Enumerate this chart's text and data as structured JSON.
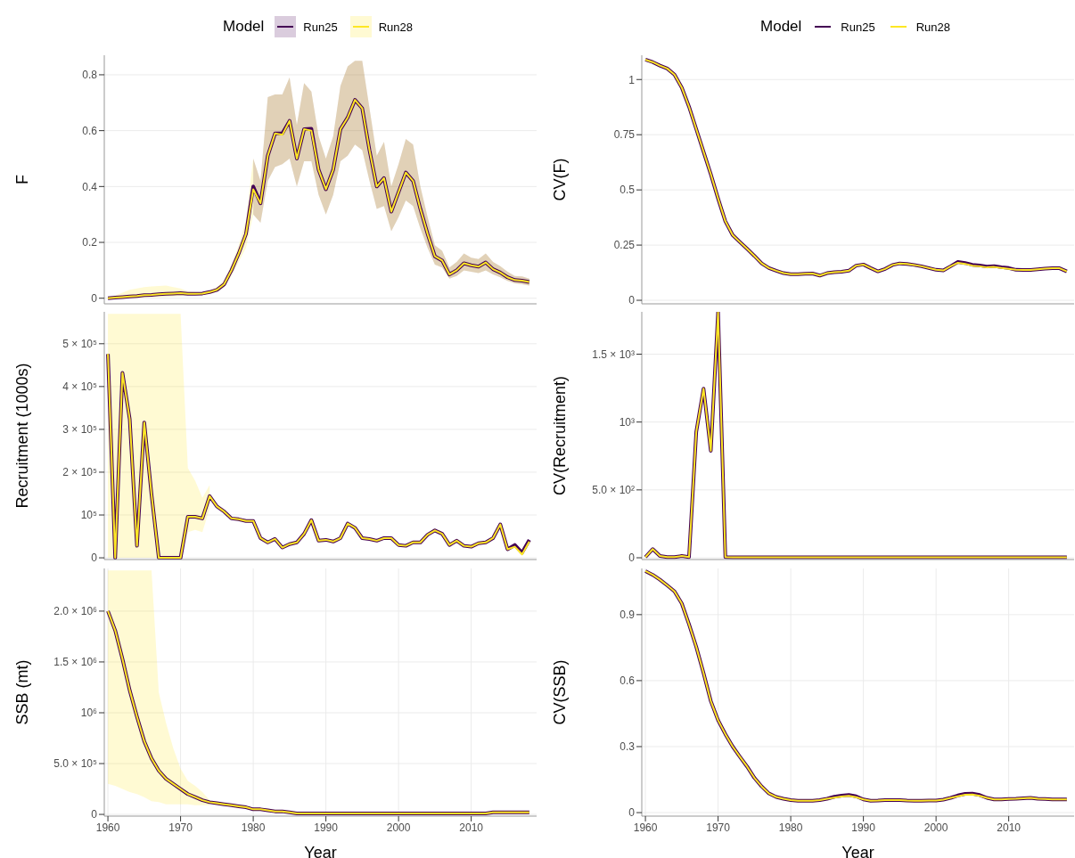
{
  "chart_data": [
    {
      "type": "line",
      "ylabel": "F",
      "legend": "top",
      "legend_title": "Model",
      "tick_labels": "y",
      "grid": true,
      "xlim": [
        1959.5,
        2019
      ],
      "xticks": [
        1960,
        1970,
        1980,
        1990,
        2000,
        2010
      ],
      "ylim": [
        -0.02,
        0.87
      ],
      "yticks": [
        0,
        0.2,
        0.4,
        0.6,
        0.8
      ],
      "x": [
        1960,
        1961,
        1962,
        1963,
        1964,
        1965,
        1966,
        1967,
        1968,
        1969,
        1970,
        1971,
        1972,
        1973,
        1974,
        1975,
        1976,
        1977,
        1978,
        1979,
        1980,
        1981,
        1982,
        1983,
        1984,
        1985,
        1986,
        1987,
        1988,
        1989,
        1990,
        1991,
        1992,
        1993,
        1994,
        1995,
        1996,
        1997,
        1998,
        1999,
        2000,
        2001,
        2002,
        2003,
        2004,
        2005,
        2006,
        2007,
        2008,
        2009,
        2010,
        2011,
        2012,
        2013,
        2014,
        2015,
        2016,
        2017,
        2018
      ],
      "series": [
        {
          "name": "Run25",
          "color": "#440154",
          "values": [
            0,
            0.002,
            0.004,
            0.006,
            0.008,
            0.011,
            0.012,
            0.014,
            0.016,
            0.017,
            0.018,
            0.016,
            0.016,
            0.017,
            0.022,
            0.03,
            0.05,
            0.1,
            0.16,
            0.23,
            0.4,
            0.34,
            0.51,
            0.59,
            0.59,
            0.635,
            0.5,
            0.605,
            0.607,
            0.46,
            0.39,
            0.46,
            0.605,
            0.647,
            0.71,
            0.68,
            0.53,
            0.4,
            0.43,
            0.31,
            0.38,
            0.45,
            0.42,
            0.32,
            0.23,
            0.15,
            0.135,
            0.085,
            0.1,
            0.125,
            0.118,
            0.113,
            0.128,
            0.104,
            0.092,
            0.075,
            0.065,
            0.063,
            0.058
          ],
          "lower": [
            null,
            null,
            null,
            null,
            null,
            null,
            null,
            null,
            null,
            null,
            null,
            null,
            null,
            null,
            null,
            null,
            null,
            null,
            null,
            null,
            0.3,
            0.27,
            0.42,
            0.47,
            0.48,
            0.5,
            0.4,
            0.49,
            0.49,
            0.37,
            0.3,
            0.37,
            0.49,
            0.51,
            0.55,
            0.53,
            0.42,
            0.32,
            0.33,
            0.24,
            0.29,
            0.35,
            0.33,
            0.25,
            0.18,
            0.12,
            0.11,
            0.07,
            0.08,
            0.1,
            0.095,
            0.09,
            0.1,
            0.085,
            0.075,
            0.062,
            0.053,
            0.05,
            0.045
          ],
          "upper": [
            null,
            null,
            null,
            null,
            null,
            null,
            null,
            null,
            null,
            null,
            null,
            null,
            null,
            null,
            null,
            null,
            null,
            null,
            null,
            null,
            0.5,
            0.42,
            0.72,
            0.73,
            0.73,
            0.79,
            0.62,
            0.77,
            0.74,
            0.58,
            0.5,
            0.58,
            0.76,
            0.83,
            0.85,
            0.85,
            0.68,
            0.51,
            0.56,
            0.4,
            0.48,
            0.57,
            0.55,
            0.4,
            0.29,
            0.19,
            0.17,
            0.11,
            0.13,
            0.16,
            0.145,
            0.14,
            0.16,
            0.13,
            0.115,
            0.095,
            0.08,
            0.078,
            0.07
          ]
        },
        {
          "name": "Run28",
          "color": "#fde725",
          "values": [
            0,
            0.002,
            0.004,
            0.006,
            0.008,
            0.011,
            0.012,
            0.014,
            0.016,
            0.017,
            0.018,
            0.016,
            0.016,
            0.017,
            0.022,
            0.03,
            0.05,
            0.1,
            0.16,
            0.23,
            0.39,
            0.34,
            0.51,
            0.59,
            0.585,
            0.635,
            0.5,
            0.605,
            0.6,
            0.46,
            0.39,
            0.46,
            0.605,
            0.647,
            0.71,
            0.68,
            0.53,
            0.4,
            0.43,
            0.31,
            0.38,
            0.45,
            0.42,
            0.32,
            0.23,
            0.15,
            0.135,
            0.085,
            0.1,
            0.125,
            0.118,
            0.113,
            0.128,
            0.104,
            0.092,
            0.075,
            0.065,
            0.063,
            0.058
          ],
          "lower": [
            0,
            0,
            0,
            0,
            0.001,
            0.002,
            0.003,
            0.004,
            0.005,
            0.006,
            0.008,
            0.01,
            0.011,
            0.012,
            0.016,
            0.022,
            0.038,
            0.08,
            0.13,
            0.18,
            0.3,
            0.27,
            0.42,
            0.47,
            0.48,
            0.5,
            0.4,
            0.49,
            0.49,
            0.37,
            0.3,
            0.37,
            0.49,
            0.51,
            0.55,
            0.53,
            0.42,
            0.32,
            0.33,
            0.24,
            0.29,
            0.35,
            0.33,
            0.25,
            0.18,
            0.12,
            0.11,
            0.07,
            0.08,
            0.1,
            0.095,
            0.09,
            0.1,
            0.085,
            0.075,
            0.062,
            0.053,
            0.05,
            0.045
          ],
          "upper": [
            0.005,
            0.01,
            0.02,
            0.03,
            0.035,
            0.04,
            0.042,
            0.044,
            0.045,
            0.04,
            0.035,
            0.025,
            0.022,
            0.022,
            0.028,
            0.04,
            0.065,
            0.12,
            0.19,
            0.28,
            0.5,
            0.42,
            0.72,
            0.73,
            0.73,
            0.79,
            0.62,
            0.77,
            0.74,
            0.58,
            0.5,
            0.58,
            0.76,
            0.83,
            0.85,
            0.85,
            0.68,
            0.51,
            0.56,
            0.4,
            0.48,
            0.57,
            0.55,
            0.4,
            0.29,
            0.19,
            0.17,
            0.11,
            0.13,
            0.16,
            0.145,
            0.14,
            0.16,
            0.13,
            0.115,
            0.095,
            0.08,
            0.078,
            0.07
          ]
        }
      ]
    },
    {
      "type": "line",
      "ylabel": "CV(F)",
      "legend": "top",
      "legend_title": "Model",
      "tick_labels": "y",
      "grid": true,
      "xlim": [
        1959.5,
        2019
      ],
      "xticks": [
        1960,
        1970,
        1980,
        1990,
        2000,
        2010
      ],
      "ylim": [
        -0.016,
        1.11
      ],
      "yticks": [
        0,
        0.25,
        0.5,
        0.75,
        1
      ],
      "x": [
        1960,
        1961,
        1962,
        1963,
        1964,
        1965,
        1966,
        1967,
        1968,
        1969,
        1970,
        1971,
        1972,
        1973,
        1974,
        1975,
        1976,
        1977,
        1978,
        1979,
        1980,
        1981,
        1982,
        1983,
        1984,
        1985,
        1986,
        1987,
        1988,
        1989,
        1990,
        1991,
        1992,
        1993,
        1994,
        1995,
        1996,
        1997,
        1998,
        1999,
        2000,
        2001,
        2002,
        2003,
        2004,
        2005,
        2006,
        2007,
        2008,
        2009,
        2010,
        2011,
        2012,
        2013,
        2014,
        2015,
        2016,
        2017,
        2018
      ],
      "series": [
        {
          "name": "Run25",
          "color": "#440154",
          "values": [
            1.09,
            1.079,
            1.063,
            1.05,
            1.022,
            0.964,
            0.877,
            0.775,
            0.673,
            0.571,
            0.461,
            0.358,
            0.296,
            0.264,
            0.233,
            0.201,
            0.167,
            0.146,
            0.134,
            0.123,
            0.118,
            0.118,
            0.12,
            0.121,
            0.112,
            0.123,
            0.127,
            0.129,
            0.134,
            0.157,
            0.162,
            0.146,
            0.131,
            0.142,
            0.16,
            0.167,
            0.165,
            0.16,
            0.154,
            0.146,
            0.138,
            0.135,
            0.154,
            0.174,
            0.169,
            0.161,
            0.158,
            0.153,
            0.155,
            0.15,
            0.146,
            0.138,
            0.137,
            0.137,
            0.14,
            0.143,
            0.145,
            0.145,
            0.131
          ]
        },
        {
          "name": "Run28",
          "color": "#fde725",
          "values": [
            1.09,
            1.079,
            1.063,
            1.05,
            1.022,
            0.964,
            0.877,
            0.775,
            0.673,
            0.571,
            0.461,
            0.358,
            0.296,
            0.264,
            0.233,
            0.201,
            0.167,
            0.146,
            0.134,
            0.123,
            0.118,
            0.118,
            0.12,
            0.121,
            0.112,
            0.123,
            0.127,
            0.129,
            0.134,
            0.157,
            0.162,
            0.146,
            0.131,
            0.142,
            0.16,
            0.167,
            0.165,
            0.16,
            0.154,
            0.146,
            0.138,
            0.135,
            0.154,
            0.17,
            0.165,
            0.157,
            0.154,
            0.149,
            0.151,
            0.146,
            0.142,
            0.138,
            0.137,
            0.137,
            0.14,
            0.143,
            0.145,
            0.145,
            0.131
          ]
        }
      ]
    },
    {
      "type": "line",
      "ylabel": "Recruitment (1000s)",
      "tick_labels": "y",
      "grid": true,
      "xlim": [
        1959.5,
        2019
      ],
      "xticks": [
        1960,
        1970,
        1980,
        1990,
        2000,
        2010
      ],
      "ylim": [
        -4000,
        574500
      ],
      "yticks": [
        0,
        {
          "value": 100000,
          "label": "10⁵"
        },
        {
          "value": 200000,
          "label": "2 × 10⁵"
        },
        {
          "value": 300000,
          "label": "3 × 10⁵"
        },
        {
          "value": 400000,
          "label": "4 × 10⁵"
        },
        {
          "value": 500000,
          "label": "5 × 10⁵"
        }
      ],
      "x": [
        1960,
        1961,
        1962,
        1963,
        1964,
        1965,
        1966,
        1967,
        1968,
        1969,
        1970,
        1971,
        1972,
        1973,
        1974,
        1975,
        1976,
        1977,
        1978,
        1979,
        1980,
        1981,
        1982,
        1983,
        1984,
        1985,
        1986,
        1987,
        1988,
        1989,
        1990,
        1991,
        1992,
        1993,
        1994,
        1995,
        1996,
        1997,
        1998,
        1999,
        2000,
        2001,
        2002,
        2003,
        2004,
        2005,
        2006,
        2007,
        2008,
        2009,
        2010,
        2011,
        2012,
        2013,
        2014,
        2015,
        2016,
        2017,
        2018
      ],
      "series": [
        {
          "color": "#440154",
          "values": [
            476000,
            0,
            432000,
            324000,
            28000,
            316000,
            148000,
            0,
            0,
            0,
            0,
            96000,
            96000,
            92000,
            144000,
            120000,
            108000,
            92000,
            90000,
            86000,
            86000,
            46000,
            36000,
            44000,
            24000,
            32000,
            36000,
            56000,
            88000,
            40000,
            42000,
            38000,
            46000,
            80000,
            70000,
            46000,
            44000,
            40000,
            46000,
            46000,
            30000,
            28000,
            36000,
            36000,
            54000,
            64000,
            56000,
            30000,
            40000,
            28000,
            26000,
            34000,
            36000,
            46000,
            78000,
            20000,
            30000,
            12000,
            42000
          ]
        },
        {
          "color": "#fde725",
          "values": [
            476000,
            0,
            432000,
            324000,
            28000,
            316000,
            148000,
            0,
            0,
            0,
            0,
            96000,
            96000,
            92000,
            144000,
            120000,
            108000,
            92000,
            90000,
            86000,
            86000,
            46000,
            36000,
            44000,
            24000,
            32000,
            36000,
            56000,
            88000,
            40000,
            42000,
            38000,
            46000,
            80000,
            70000,
            46000,
            44000,
            40000,
            46000,
            46000,
            30000,
            28000,
            36000,
            36000,
            54000,
            64000,
            56000,
            30000,
            40000,
            28000,
            26000,
            34000,
            36000,
            46000,
            78000,
            20000,
            26000,
            8000,
            38000
          ],
          "lower": [
            0,
            0,
            0,
            0,
            0,
            0,
            0,
            0,
            0,
            0,
            0,
            60000,
            65000,
            60000,
            115000,
            null,
            null,
            null,
            null,
            null,
            null,
            null,
            null,
            null,
            null,
            null,
            null,
            null,
            null,
            null,
            null,
            null,
            null,
            null,
            null,
            null,
            null,
            null,
            null,
            null,
            null,
            null,
            null,
            null,
            null,
            null,
            null,
            null,
            null,
            null,
            null,
            null,
            null,
            null,
            null,
            null,
            null,
            null,
            null
          ],
          "upper": [
            570000,
            570000,
            570000,
            570000,
            570000,
            570000,
            570000,
            570000,
            570000,
            570000,
            570000,
            210000,
            180000,
            140000,
            170000,
            null,
            null,
            null,
            null,
            null,
            null,
            null,
            null,
            null,
            null,
            null,
            null,
            null,
            null,
            null,
            null,
            null,
            null,
            null,
            null,
            null,
            null,
            null,
            null,
            null,
            null,
            null,
            null,
            null,
            null,
            null,
            null,
            null,
            null,
            null,
            null,
            null,
            null,
            null,
            null,
            null,
            null,
            null,
            null
          ]
        }
      ]
    },
    {
      "type": "line",
      "ylabel": "CV(Recruitment)",
      "tick_labels": "y",
      "grid": true,
      "xlim": [
        1959.5,
        2019
      ],
      "xticks": [
        1960,
        1970,
        1980,
        1990,
        2000,
        2010
      ],
      "ylim": [
        -13,
        1812
      ],
      "yticks": [
        0,
        {
          "value": 500,
          "label": "5.0 × 10²"
        },
        {
          "value": 1000,
          "label": "10³"
        },
        {
          "value": 1500,
          "label": "1.5 × 10³"
        }
      ],
      "x": [
        1960,
        1961,
        1962,
        1963,
        1964,
        1965,
        1966,
        1967,
        1968,
        1969,
        1970,
        1971,
        1972,
        1973,
        1974,
        1975,
        1976,
        1977,
        1978,
        1979,
        1980,
        1981,
        1982,
        1983,
        1984,
        1985,
        1986,
        1987,
        1988,
        1989,
        1990,
        1991,
        1992,
        1993,
        1994,
        1995,
        1996,
        1997,
        1998,
        1999,
        2000,
        2001,
        2002,
        2003,
        2004,
        2005,
        2006,
        2007,
        2008,
        2009,
        2010,
        2011,
        2012,
        2013,
        2014,
        2015,
        2016,
        2017,
        2018
      ],
      "series": [
        {
          "color": "#440154",
          "values": [
            5,
            64,
            13,
            5,
            5,
            13,
            5,
            928,
            1246,
            788,
            1810,
            5,
            3,
            3,
            3,
            3,
            3,
            3,
            3,
            3,
            3,
            3,
            3,
            3,
            3,
            3,
            3,
            3,
            3,
            3,
            3,
            3,
            3,
            3,
            3,
            3,
            3,
            3,
            3,
            3,
            3,
            3,
            3,
            3,
            3,
            3,
            3,
            3,
            3,
            3,
            3,
            3,
            3,
            3,
            3,
            3,
            3,
            3,
            3
          ]
        },
        {
          "color": "#fde725",
          "values": [
            5,
            64,
            13,
            5,
            5,
            13,
            5,
            928,
            1246,
            788,
            1810,
            5,
            3,
            3,
            3,
            3,
            3,
            3,
            3,
            3,
            3,
            3,
            3,
            3,
            3,
            3,
            3,
            3,
            3,
            3,
            3,
            3,
            3,
            3,
            3,
            3,
            3,
            3,
            3,
            3,
            3,
            3,
            3,
            3,
            3,
            3,
            3,
            3,
            3,
            3,
            3,
            3,
            3,
            3,
            3,
            3,
            3,
            3,
            3
          ]
        }
      ]
    },
    {
      "type": "line",
      "ylabel": "SSB (mt)",
      "xlabel": "Year",
      "grid": true,
      "xlim": [
        1959.5,
        2019
      ],
      "xticks": [
        1960,
        1970,
        1980,
        1990,
        2000,
        2010
      ],
      "ylim": [
        -17000,
        2420000
      ],
      "yticks": [
        0,
        {
          "value": 500000,
          "label": "5.0 × 10⁵"
        },
        {
          "value": 1000000,
          "label": "10⁶"
        },
        {
          "value": 1500000,
          "label": "1.5 × 10⁶"
        },
        {
          "value": 2000000,
          "label": "2.0 × 10⁶"
        }
      ],
      "x": [
        1960,
        1961,
        1962,
        1963,
        1964,
        1965,
        1966,
        1967,
        1968,
        1969,
        1970,
        1971,
        1972,
        1973,
        1974,
        1975,
        1976,
        1977,
        1978,
        1979,
        1980,
        1981,
        1982,
        1983,
        1984,
        1985,
        1986,
        1987,
        1988,
        1989,
        1990,
        1991,
        1992,
        1993,
        1994,
        1995,
        1996,
        1997,
        1998,
        1999,
        2000,
        2001,
        2002,
        2003,
        2004,
        2005,
        2006,
        2007,
        2008,
        2009,
        2010,
        2011,
        2012,
        2013,
        2014,
        2015,
        2016,
        2017,
        2018
      ],
      "series": [
        {
          "color": "#440154",
          "values": [
            2000000,
            1810000,
            1530000,
            1220000,
            960000,
            720000,
            550000,
            430000,
            350000,
            300000,
            250000,
            200000,
            170000,
            140000,
            120000,
            110000,
            100000,
            90000,
            80000,
            70000,
            50000,
            50000,
            40000,
            30000,
            30000,
            20000,
            10000,
            10000,
            10000,
            10000,
            10000,
            10000,
            10000,
            10000,
            10000,
            10000,
            10000,
            10000,
            10000,
            10000,
            10000,
            10000,
            10000,
            10000,
            10000,
            10000,
            10000,
            10000,
            10000,
            10000,
            10000,
            10000,
            10000,
            20000,
            20000,
            20000,
            20000,
            20000,
            20000
          ]
        },
        {
          "color": "#fde725",
          "values": [
            2000000,
            1810000,
            1530000,
            1220000,
            960000,
            720000,
            550000,
            430000,
            350000,
            300000,
            250000,
            200000,
            170000,
            140000,
            120000,
            110000,
            100000,
            90000,
            80000,
            70000,
            50000,
            50000,
            40000,
            30000,
            30000,
            20000,
            10000,
            10000,
            10000,
            10000,
            10000,
            10000,
            10000,
            10000,
            10000,
            10000,
            10000,
            10000,
            10000,
            10000,
            10000,
            10000,
            10000,
            10000,
            10000,
            10000,
            10000,
            10000,
            10000,
            10000,
            10000,
            10000,
            10000,
            20000,
            20000,
            20000,
            20000,
            20000,
            20000
          ],
          "lower": [
            300000,
            280000,
            250000,
            220000,
            200000,
            170000,
            130000,
            120000,
            100000,
            100000,
            100000,
            100000,
            90000,
            90000,
            90000,
            null,
            null,
            null,
            null,
            null,
            null,
            null,
            null,
            null,
            null,
            null,
            null,
            null,
            null,
            null,
            null,
            null,
            null,
            null,
            null,
            null,
            null,
            null,
            null,
            null,
            null,
            null,
            null,
            null,
            null,
            null,
            null,
            null,
            null,
            null,
            null,
            null,
            null,
            null,
            null,
            null,
            null,
            null,
            null
          ],
          "upper": [
            2400000,
            2400000,
            2400000,
            2400000,
            2400000,
            2400000,
            2400000,
            1200000,
            900000,
            650000,
            450000,
            330000,
            280000,
            220000,
            140000,
            null,
            null,
            null,
            null,
            null,
            null,
            null,
            null,
            null,
            null,
            null,
            null,
            null,
            null,
            null,
            null,
            null,
            null,
            null,
            null,
            null,
            null,
            null,
            null,
            null,
            null,
            null,
            null,
            null,
            null,
            null,
            null,
            null,
            null,
            null,
            null,
            null,
            null,
            null,
            null,
            null,
            null,
            null,
            null
          ]
        }
      ]
    },
    {
      "type": "line",
      "ylabel": "CV(SSB)",
      "xlabel": "Year",
      "grid": true,
      "xlim": [
        1959.5,
        2019
      ],
      "xticks": [
        1960,
        1970,
        1980,
        1990,
        2000,
        2010
      ],
      "ylim": [
        -0.016,
        1.11
      ],
      "yticks": [
        0,
        0.3,
        0.6,
        0.9
      ],
      "x": [
        1960,
        1961,
        1962,
        1963,
        1964,
        1965,
        1966,
        1967,
        1968,
        1969,
        1970,
        1971,
        1972,
        1973,
        1974,
        1975,
        1976,
        1977,
        1978,
        1979,
        1980,
        1981,
        1982,
        1983,
        1984,
        1985,
        1986,
        1987,
        1988,
        1989,
        1990,
        1991,
        1992,
        1993,
        1994,
        1995,
        1996,
        1997,
        1998,
        1999,
        2000,
        2001,
        2002,
        2003,
        2004,
        2005,
        2006,
        2007,
        2008,
        2009,
        2010,
        2011,
        2012,
        2013,
        2014,
        2015,
        2016,
        2017,
        2018
      ],
      "series": [
        {
          "color": "#440154",
          "values": [
            1.098,
            1.081,
            1.059,
            1.033,
            1.006,
            0.951,
            0.856,
            0.753,
            0.634,
            0.507,
            0.42,
            0.357,
            0.301,
            0.254,
            0.209,
            0.158,
            0.119,
            0.087,
            0.071,
            0.063,
            0.057,
            0.054,
            0.054,
            0.054,
            0.057,
            0.063,
            0.072,
            0.077,
            0.08,
            0.074,
            0.06,
            0.054,
            0.055,
            0.057,
            0.057,
            0.057,
            0.055,
            0.054,
            0.054,
            0.055,
            0.055,
            0.059,
            0.067,
            0.078,
            0.085,
            0.086,
            0.08,
            0.067,
            0.06,
            0.06,
            0.062,
            0.063,
            0.065,
            0.067,
            0.063,
            0.062,
            0.06,
            0.06,
            0.06
          ]
        },
        {
          "color": "#fde725",
          "values": [
            1.098,
            1.081,
            1.059,
            1.033,
            1.006,
            0.951,
            0.856,
            0.753,
            0.634,
            0.507,
            0.42,
            0.357,
            0.301,
            0.254,
            0.209,
            0.158,
            0.119,
            0.087,
            0.071,
            0.063,
            0.057,
            0.054,
            0.054,
            0.054,
            0.057,
            0.063,
            0.068,
            0.073,
            0.076,
            0.07,
            0.06,
            0.054,
            0.055,
            0.057,
            0.057,
            0.057,
            0.055,
            0.054,
            0.054,
            0.055,
            0.055,
            0.059,
            0.067,
            0.074,
            0.081,
            0.082,
            0.076,
            0.067,
            0.06,
            0.06,
            0.062,
            0.063,
            0.065,
            0.067,
            0.063,
            0.062,
            0.06,
            0.06,
            0.06
          ]
        }
      ]
    }
  ]
}
